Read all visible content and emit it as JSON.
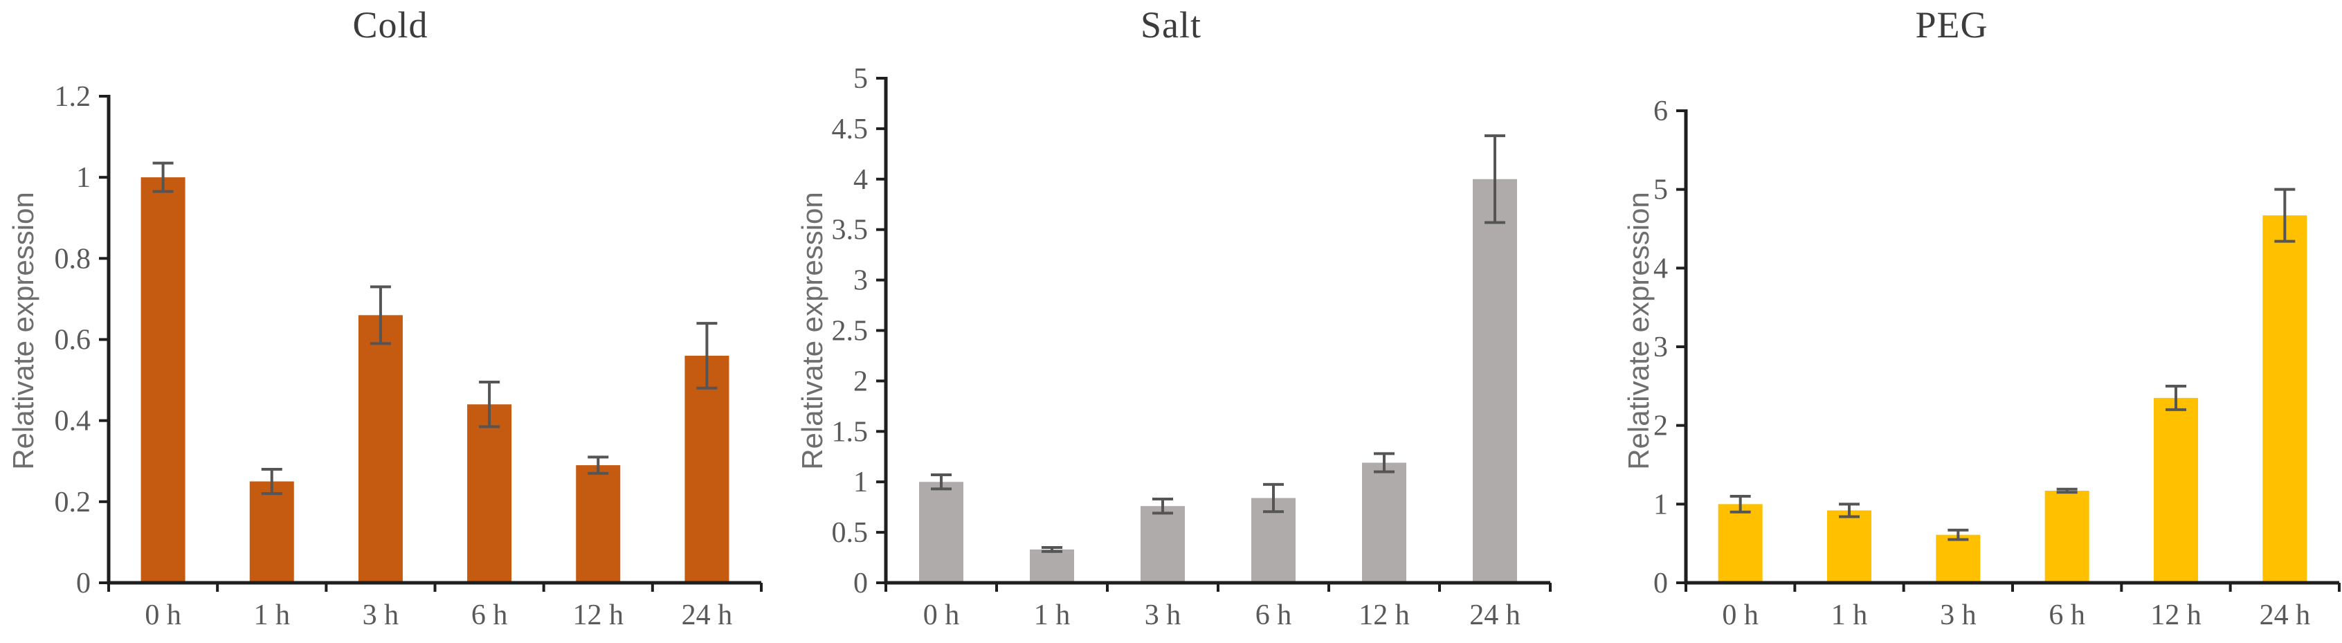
{
  "figure": {
    "background": "#ffffff",
    "axis_color": "#1f1f1f",
    "error_bar_color": "#555555",
    "tick_label_color": "#595959",
    "title_color": "#3c3c3c",
    "ylabel_color": "#6e6e6e"
  },
  "chart_data": [
    {
      "type": "bar",
      "title": "Cold",
      "ylabel": "Relativate expression",
      "xlabel": "",
      "categories": [
        "0 h",
        "1 h",
        "3 h",
        "6 h",
        "12 h",
        "24 h"
      ],
      "values": [
        1.0,
        0.25,
        0.66,
        0.44,
        0.29,
        0.56
      ],
      "errors": [
        0.035,
        0.03,
        0.07,
        0.055,
        0.02,
        0.08
      ],
      "ylim": [
        0,
        1.2
      ],
      "yticks": [
        0,
        0.2,
        0.4,
        0.6,
        0.8,
        1,
        1.2
      ],
      "ytick_labels": [
        "0",
        "0.2",
        "0.4",
        "0.6",
        "0.8",
        "1",
        "1.2"
      ],
      "bar_color": "#C55A11",
      "grid": false,
      "legend": "none"
    },
    {
      "type": "bar",
      "title": "Salt",
      "ylabel": "Relativate expression",
      "xlabel": "",
      "categories": [
        "0 h",
        "1 h",
        "3 h",
        "6 h",
        "12 h",
        "24 h"
      ],
      "values": [
        1.0,
        0.33,
        0.76,
        0.84,
        1.19,
        4.0
      ],
      "errors": [
        0.07,
        0.02,
        0.07,
        0.135,
        0.09,
        0.43
      ],
      "ylim": [
        0,
        5
      ],
      "yticks": [
        0,
        0.5,
        1,
        1.5,
        2,
        2.5,
        3,
        3.5,
        4,
        4.5,
        5
      ],
      "ytick_labels": [
        "0",
        "0.5",
        "1",
        "1.5",
        "2",
        "2.5",
        "3",
        "3.5",
        "4",
        "4.5",
        "5"
      ],
      "bar_color": "#AFABAB",
      "grid": false,
      "legend": "none"
    },
    {
      "type": "bar",
      "title": "PEG",
      "ylabel": "Relativate expression",
      "xlabel": "",
      "categories": [
        "0 h",
        "1 h",
        "3 h",
        "6 h",
        "12 h",
        "24 h"
      ],
      "values": [
        1.0,
        0.92,
        0.61,
        1.17,
        2.35,
        4.67
      ],
      "errors": [
        0.1,
        0.08,
        0.06,
        0.02,
        0.15,
        0.33
      ],
      "ylim": [
        0,
        6
      ],
      "yticks": [
        0,
        1,
        2,
        3,
        4,
        5,
        6
      ],
      "ytick_labels": [
        "0",
        "1",
        "2",
        "3",
        "4",
        "5",
        "6"
      ],
      "bar_color": "#FFC000",
      "grid": false,
      "legend": "none"
    }
  ]
}
